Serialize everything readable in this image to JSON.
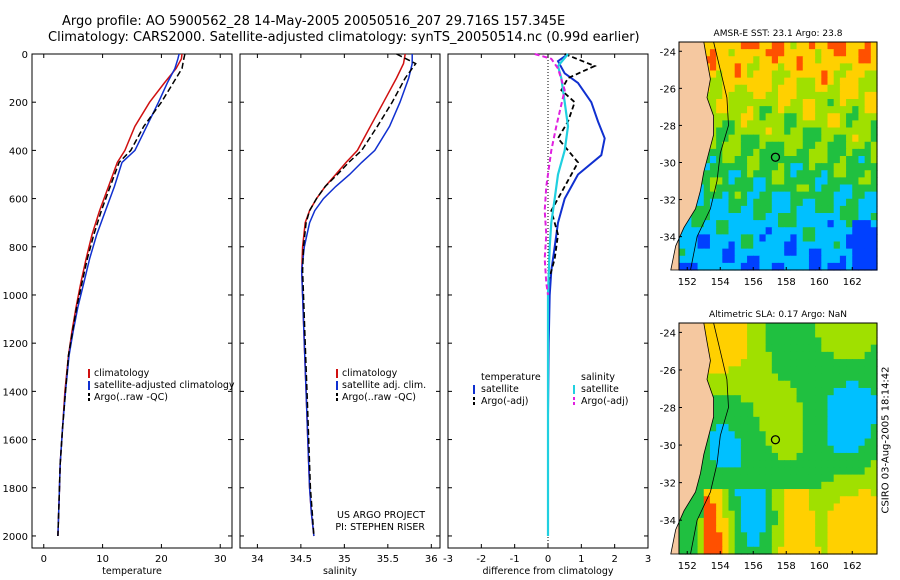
{
  "header": {
    "title_line1": "Argo profile: AO 5900562_28 14-May-2005 20050516_207 29.716S 157.345E",
    "title_line2": "Climatology: CARS2000. Satellite-adjusted climatology: synTS_20050514.nc (0.99d earlier)"
  },
  "colors": {
    "climatology": "#d01010",
    "satellite": "#1030d0",
    "argo": "#000000",
    "sal_satellite": "#20d0e0",
    "sal_argo": "#e020e0",
    "land": "#f5c8a0"
  },
  "depth_axis": {
    "ticks": [
      "0",
      "200",
      "400",
      "600",
      "800",
      "1000",
      "1200",
      "1400",
      "1600",
      "1800",
      "2000"
    ],
    "ylim": [
      0,
      2050
    ]
  },
  "chart_data": [
    {
      "type": "line",
      "id": "temperature",
      "xlabel": "temperature",
      "xlim": [
        -2,
        32
      ],
      "xticks": [
        "0",
        "10",
        "20",
        "30"
      ],
      "legend": [
        "climatology",
        "satellite-adjusted climatology",
        "Argo(..raw -QC)"
      ],
      "series": [
        {
          "name": "climatology",
          "x": [
            23.5,
            23.4,
            22.5,
            20.5,
            18,
            15.5,
            13.8,
            12.5,
            11,
            9.5,
            8.2,
            7.2,
            6.3,
            5.5,
            4.8,
            4.2,
            3.6,
            3.2,
            2.8,
            2.6,
            2.4
          ],
          "y": [
            0,
            20,
            60,
            120,
            200,
            300,
            400,
            450,
            550,
            650,
            750,
            850,
            950,
            1050,
            1150,
            1250,
            1400,
            1550,
            1700,
            1850,
            2000
          ]
        },
        {
          "name": "satellite-adjusted climatology",
          "x": [
            23,
            22.8,
            22.3,
            21,
            19.5,
            17.5,
            15.5,
            13.3,
            12,
            10.5,
            9,
            7.8,
            6.8,
            5.8,
            5,
            4.3,
            3.7,
            3.2,
            2.8,
            2.6,
            2.4
          ],
          "y": [
            0,
            20,
            60,
            120,
            200,
            300,
            400,
            450,
            550,
            650,
            750,
            850,
            950,
            1050,
            1150,
            1250,
            1400,
            1550,
            1700,
            1850,
            2000
          ]
        },
        {
          "name": "Argo(..raw -QC)",
          "x": [
            24,
            23.8,
            23.5,
            22,
            20,
            17,
            14.8,
            12.8,
            11.3,
            9.8,
            8.5,
            7.4,
            6.5,
            5.6,
            4.9,
            4.2,
            3.7,
            3.2,
            2.8,
            2.6,
            2.4
          ],
          "y": [
            0,
            20,
            60,
            120,
            200,
            300,
            400,
            450,
            550,
            650,
            750,
            850,
            950,
            1050,
            1150,
            1250,
            1400,
            1550,
            1700,
            1850,
            2000
          ]
        }
      ]
    },
    {
      "type": "line",
      "id": "salinity",
      "xlabel": "salinity",
      "xlim": [
        33.8,
        36.1
      ],
      "xticks": [
        "34",
        "34.5",
        "35",
        "35.5",
        "36"
      ],
      "legend": [
        "climatology",
        "satellite adj. clim.",
        "Argo(..raw -QC)"
      ],
      "annotation": [
        "US ARGO PROJECT",
        "PI: STEPHEN RISER"
      ],
      "series": [
        {
          "name": "climatology",
          "x": [
            35.7,
            35.68,
            35.6,
            35.45,
            35.3,
            35.15,
            35.02,
            34.9,
            34.78,
            34.68,
            34.6,
            34.55,
            34.52,
            34.51,
            34.52,
            34.54,
            34.56,
            34.58,
            34.6,
            34.62,
            34.65
          ],
          "y": [
            0,
            40,
            100,
            200,
            300,
            400,
            450,
            500,
            550,
            600,
            650,
            700,
            800,
            900,
            1000,
            1200,
            1400,
            1600,
            1800,
            1900,
            2000
          ]
        },
        {
          "name": "satellite adj. clim.",
          "x": [
            35.78,
            35.78,
            35.74,
            35.64,
            35.52,
            35.35,
            35.2,
            35.06,
            34.9,
            34.76,
            34.66,
            34.6,
            34.54,
            34.51,
            34.52,
            34.54,
            34.56,
            34.58,
            34.6,
            34.62,
            34.65
          ],
          "y": [
            0,
            40,
            100,
            200,
            300,
            400,
            450,
            500,
            550,
            600,
            650,
            700,
            800,
            900,
            1000,
            1200,
            1400,
            1600,
            1800,
            1900,
            2000
          ]
        },
        {
          "name": "Argo(..raw -QC)",
          "x": [
            35.6,
            35.82,
            35.7,
            35.55,
            35.38,
            35.2,
            35.05,
            34.92,
            34.78,
            34.68,
            34.6,
            34.56,
            34.53,
            34.52,
            34.53,
            34.55,
            34.57,
            34.59,
            34.61,
            34.63,
            34.65
          ],
          "y": [
            0,
            40,
            100,
            200,
            300,
            400,
            450,
            500,
            550,
            600,
            650,
            700,
            800,
            900,
            1000,
            1200,
            1400,
            1600,
            1800,
            1900,
            2000
          ]
        }
      ]
    },
    {
      "type": "line",
      "id": "difference",
      "xlabel": "difference from climatology",
      "xlim": [
        -3,
        3
      ],
      "xticks": [
        "-3",
        "-2",
        "-1",
        "0",
        "1",
        "2",
        "3"
      ],
      "legend_left": [
        "temperature",
        "satellite",
        "Argo(-adj)"
      ],
      "legend_right": [
        "salinity",
        "satellite",
        "Argo(-adj)"
      ],
      "series": [
        {
          "name": "temperature satellite",
          "x": [
            0.6,
            0.3,
            0.5,
            0.9,
            1.3,
            1.5,
            1.7,
            1.6,
            0.9,
            0.5,
            0.3,
            0.2,
            0.1,
            0.05,
            0.02,
            0,
            0,
            0
          ],
          "y": [
            0,
            30,
            80,
            120,
            200,
            280,
            350,
            420,
            500,
            600,
            700,
            800,
            900,
            1000,
            1200,
            1500,
            1800,
            2000
          ]
        },
        {
          "name": "temperature Argo(-adj)",
          "x": [
            0.5,
            1.4,
            0.6,
            0.4,
            0.8,
            0.6,
            0.3,
            0.9,
            0.5,
            0.1,
            0.3,
            0.2,
            0,
            0,
            0,
            0
          ],
          "y": [
            0,
            50,
            100,
            150,
            200,
            280,
            350,
            450,
            550,
            650,
            750,
            850,
            950,
            1200,
            1600,
            2000
          ]
        },
        {
          "name": "salinity satellite",
          "x": [
            0.6,
            0.3,
            0.4,
            0.5,
            0.6,
            0.5,
            0.3,
            0.2,
            0.1,
            0.05,
            0,
            0,
            0
          ],
          "y": [
            0,
            50,
            100,
            200,
            300,
            400,
            500,
            600,
            700,
            800,
            1000,
            1500,
            2000
          ]
        },
        {
          "name": "salinity Argo(-adj)",
          "x": [
            -0.4,
            0.1,
            0.3,
            0.5,
            0.25,
            0.1,
            -0.05,
            -0.1,
            -0.05,
            -0.1,
            -0.05,
            0
          ],
          "y": [
            0,
            20,
            60,
            150,
            300,
            400,
            550,
            650,
            750,
            850,
            950,
            1000
          ]
        }
      ]
    }
  ],
  "maps": [
    {
      "title": "AMSR-E SST: 23.1 Argo: 23.8",
      "kind": "sst",
      "yticks": [
        "-24",
        "-26",
        "-28",
        "-30",
        "-32",
        "-34"
      ],
      "xticks": [
        "152",
        "154",
        "156",
        "158",
        "160",
        "162"
      ],
      "lon": [
        151.5,
        163.5
      ],
      "lat": [
        -23.5,
        -35.8
      ],
      "profile": {
        "lon": 157.345,
        "lat": -29.716
      }
    },
    {
      "title": "Altimetric SLA: 0.17 Argo: NaN",
      "kind": "sla",
      "yticks": [
        "-24",
        "-26",
        "-28",
        "-30",
        "-32",
        "-34"
      ],
      "xticks": [
        "152",
        "154",
        "156",
        "158",
        "160",
        "162"
      ],
      "lon": [
        151.5,
        163.5
      ],
      "lat": [
        -23.5,
        -35.8
      ],
      "profile": {
        "lon": 157.345,
        "lat": -29.716
      }
    }
  ],
  "footer": {
    "timestamp": "CSIRO 03-Aug-2005 18:14:42"
  }
}
